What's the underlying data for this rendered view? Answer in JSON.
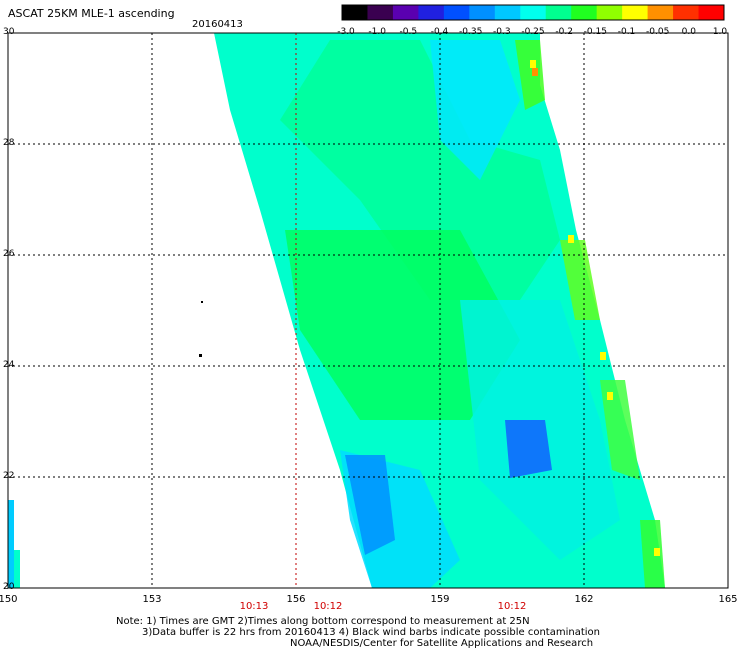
{
  "header": {
    "title": "ASCAT 25KM MLE-1 ascending",
    "date": "20160413"
  },
  "colorbar": {
    "ticks": [
      "-3.0",
      "-1.0",
      "-0.5",
      "-0.4",
      "-0.35",
      "-0.3",
      "-0.25",
      "-0.2",
      "-0.15",
      "-0.1",
      "-0.05",
      "0.0",
      "1.0"
    ],
    "colors": [
      "#000000",
      "#3a0050",
      "#5a00b0",
      "#2020e0",
      "#0050ff",
      "#0090ff",
      "#00c8ff",
      "#00ffee",
      "#00ff90",
      "#20ff20",
      "#90ff00",
      "#ffff00",
      "#ff9000",
      "#ff3000",
      "#ff0000"
    ]
  },
  "axes": {
    "x_ticks": [
      "150",
      "153",
      "156",
      "159",
      "162",
      "165"
    ],
    "x_range": [
      150,
      165
    ],
    "y_ticks": [
      "30",
      "28",
      "26",
      "24",
      "22",
      "20"
    ],
    "y_range": [
      20,
      30
    ],
    "grid": true
  },
  "times": [
    "10:13",
    "10:12",
    "10:12"
  ],
  "notes": {
    "line1": "Note: 1) Times are GMT 2)Times along bottom correspond to measurement at 25N",
    "line2": "3)Data buffer is 22 hrs from 20160413 4) Black wind barbs indicate possible contamination",
    "line3": "NOAA/NESDIS/Center for Satellite Applications and Research"
  }
}
